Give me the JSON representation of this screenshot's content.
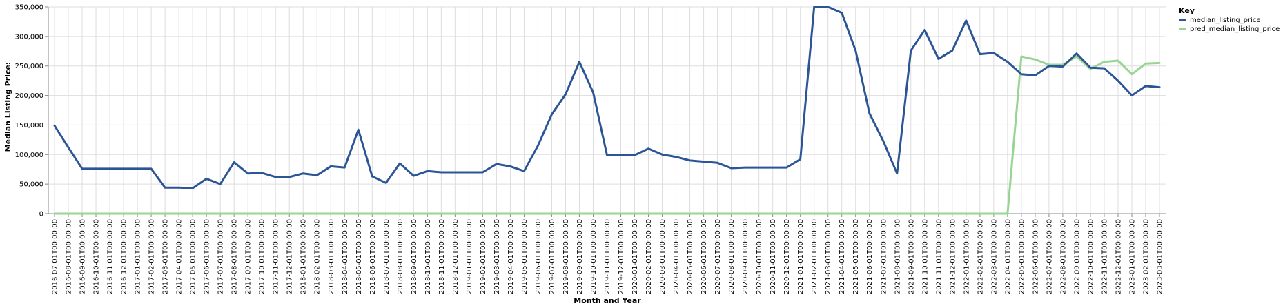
{
  "chart_data": {
    "type": "line",
    "xlabel": "Month and Year",
    "ylabel": "Median Listing Price:",
    "ylim": [
      0,
      350000
    ],
    "y_ticks": [
      0,
      50000,
      100000,
      150000,
      200000,
      250000,
      300000,
      350000
    ],
    "y_tick_labels": [
      "0",
      "50,000",
      "100,000",
      "150,000",
      "200,000",
      "250,000",
      "300,000",
      "350,000"
    ],
    "grid": true,
    "legend": {
      "title": "Key",
      "placement": "top-right",
      "entries": [
        "median_listing_price",
        "pred_median_listing_price"
      ]
    },
    "x": [
      "2016-07-01T00:00:00",
      "2016-08-01T00:00:00",
      "2016-09-01T00:00:00",
      "2016-10-01T00:00:00",
      "2016-11-01T00:00:00",
      "2016-12-01T00:00:00",
      "2017-01-01T00:00:00",
      "2017-02-01T00:00:00",
      "2017-03-01T00:00:00",
      "2017-04-01T00:00:00",
      "2017-05-01T00:00:00",
      "2017-06-01T00:00:00",
      "2017-07-01T00:00:00",
      "2017-08-01T00:00:00",
      "2017-09-01T00:00:00",
      "2017-10-01T00:00:00",
      "2017-11-01T00:00:00",
      "2017-12-01T00:00:00",
      "2018-01-01T00:00:00",
      "2018-02-01T00:00:00",
      "2018-03-01T00:00:00",
      "2018-04-01T00:00:00",
      "2018-05-01T00:00:00",
      "2018-06-01T00:00:00",
      "2018-07-01T00:00:00",
      "2018-08-01T00:00:00",
      "2018-09-01T00:00:00",
      "2018-10-01T00:00:00",
      "2018-11-01T00:00:00",
      "2018-12-01T00:00:00",
      "2019-01-01T00:00:00",
      "2019-02-01T00:00:00",
      "2019-03-01T00:00:00",
      "2019-04-01T00:00:00",
      "2019-05-01T00:00:00",
      "2019-06-01T00:00:00",
      "2019-07-01T00:00:00",
      "2019-08-01T00:00:00",
      "2019-09-01T00:00:00",
      "2019-10-01T00:00:00",
      "2019-11-01T00:00:00",
      "2019-12-01T00:00:00",
      "2020-01-01T00:00:00",
      "2020-02-01T00:00:00",
      "2020-03-01T00:00:00",
      "2020-04-01T00:00:00",
      "2020-05-01T00:00:00",
      "2020-06-01T00:00:00",
      "2020-07-01T00:00:00",
      "2020-08-01T00:00:00",
      "2020-09-01T00:00:00",
      "2020-10-01T00:00:00",
      "2020-11-01T00:00:00",
      "2020-12-01T00:00:00",
      "2021-01-01T00:00:00",
      "2021-02-01T00:00:00",
      "2021-03-01T00:00:00",
      "2021-04-01T00:00:00",
      "2021-05-01T00:00:00",
      "2021-06-01T00:00:00",
      "2021-07-01T00:00:00",
      "2021-08-01T00:00:00",
      "2021-09-01T00:00:00",
      "2021-10-01T00:00:00",
      "2021-11-01T00:00:00",
      "2021-12-01T00:00:00",
      "2022-01-01T00:00:00",
      "2022-02-01T00:00:00",
      "2022-03-01T00:00:00",
      "2022-04-01T00:00:00",
      "2022-05-01T00:00:00",
      "2022-06-01T00:00:00",
      "2022-07-01T00:00:00",
      "2022-08-01T00:00:00",
      "2022-09-01T00:00:00",
      "2022-10-01T00:00:00",
      "2022-11-01T00:00:00",
      "2022-12-01T00:00:00",
      "2023-01-01T00:00:00",
      "2023-02-01T00:00:00",
      "2023-03-01T00:00:00"
    ],
    "series": [
      {
        "name": "median_listing_price",
        "color": "#2c5595",
        "values": [
          149000,
          112000,
          76000,
          76000,
          76000,
          76000,
          76000,
          76000,
          44000,
          44000,
          43000,
          59000,
          50000,
          87000,
          68000,
          69000,
          62000,
          62000,
          68000,
          65000,
          80000,
          78000,
          142000,
          63000,
          52000,
          85000,
          64000,
          72000,
          70000,
          70000,
          70000,
          70000,
          84000,
          80000,
          72000,
          115000,
          168000,
          202000,
          257000,
          205000,
          99000,
          99000,
          99000,
          110000,
          100000,
          96000,
          90000,
          88000,
          86000,
          77000,
          78000,
          78000,
          78000,
          78000,
          92000,
          350000,
          350000,
          340000,
          276000,
          170000,
          123000,
          68000,
          276000,
          311000,
          262000,
          276000,
          327000,
          270000,
          272000,
          257000,
          236000,
          234000,
          250000,
          249000,
          271000,
          247000,
          246000,
          225000,
          200000,
          216000,
          214000
        ]
      },
      {
        "name": "pred_median_listing_price",
        "color": "#98d594",
        "values": [
          0,
          0,
          0,
          0,
          0,
          0,
          0,
          0,
          0,
          0,
          0,
          0,
          0,
          0,
          0,
          0,
          0,
          0,
          0,
          0,
          0,
          0,
          0,
          0,
          0,
          0,
          0,
          0,
          0,
          0,
          0,
          0,
          0,
          0,
          0,
          0,
          0,
          0,
          0,
          0,
          0,
          0,
          0,
          0,
          0,
          0,
          0,
          0,
          0,
          0,
          0,
          0,
          0,
          0,
          0,
          0,
          0,
          0,
          0,
          0,
          0,
          0,
          0,
          0,
          0,
          0,
          0,
          0,
          0,
          0,
          266000,
          261000,
          252000,
          252000,
          266000,
          245000,
          257000,
          259000,
          236000,
          254000,
          255000
        ]
      }
    ]
  }
}
